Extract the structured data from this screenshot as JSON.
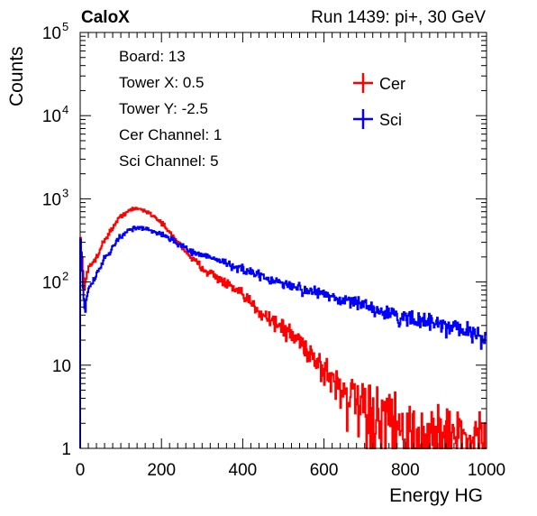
{
  "header": {
    "left_label": "CaloX",
    "right_label": "Run 1439: pi+, 30 GeV"
  },
  "info": {
    "lines": [
      "Board: 13",
      "Tower X: 0.5",
      "Tower Y: -2.5",
      "Cer Channel: 1",
      "Sci Channel: 5"
    ]
  },
  "chart_data": {
    "type": "line",
    "title": "",
    "xlabel": "Energy HG",
    "ylabel": "Counts",
    "xlim": [
      0,
      1000
    ],
    "ylim": [
      1,
      100000
    ],
    "yscale": "log",
    "grid": false,
    "legend_position": "top-right",
    "x_ticks": [
      0,
      200,
      400,
      600,
      800,
      1000
    ],
    "y_ticks": [
      {
        "value": 1,
        "label": "1",
        "sup": ""
      },
      {
        "value": 10,
        "label": "10",
        "sup": ""
      },
      {
        "value": 100,
        "label": "10",
        "sup": "2"
      },
      {
        "value": 1000,
        "label": "10",
        "sup": "3"
      },
      {
        "value": 10000,
        "label": "10",
        "sup": "4"
      },
      {
        "value": 100000,
        "label": "10",
        "sup": "5"
      }
    ],
    "x": [
      0,
      10,
      20,
      40,
      60,
      80,
      100,
      120,
      140,
      160,
      180,
      200,
      220,
      250,
      280,
      300,
      330,
      360,
      400,
      450,
      500,
      550,
      600,
      650,
      700,
      750,
      800,
      850,
      900,
      950,
      1000
    ],
    "series": [
      {
        "name": "Cer",
        "color": "#ff0000",
        "values": [
          380,
          90,
          140,
          200,
          320,
          450,
          620,
          720,
          770,
          720,
          630,
          520,
          390,
          270,
          180,
          150,
          120,
          95,
          68,
          42,
          28,
          18,
          9,
          5,
          3,
          2.4,
          1.8,
          1.6,
          1.5,
          1.4,
          1.3
        ]
      },
      {
        "name": "Sci",
        "color": "#0000ff",
        "values": [
          450,
          45,
          80,
          120,
          190,
          270,
          350,
          420,
          450,
          440,
          410,
          380,
          330,
          270,
          230,
          210,
          190,
          170,
          140,
          115,
          95,
          82,
          72,
          60,
          52,
          43,
          37,
          33,
          30,
          26,
          22
        ]
      }
    ]
  }
}
